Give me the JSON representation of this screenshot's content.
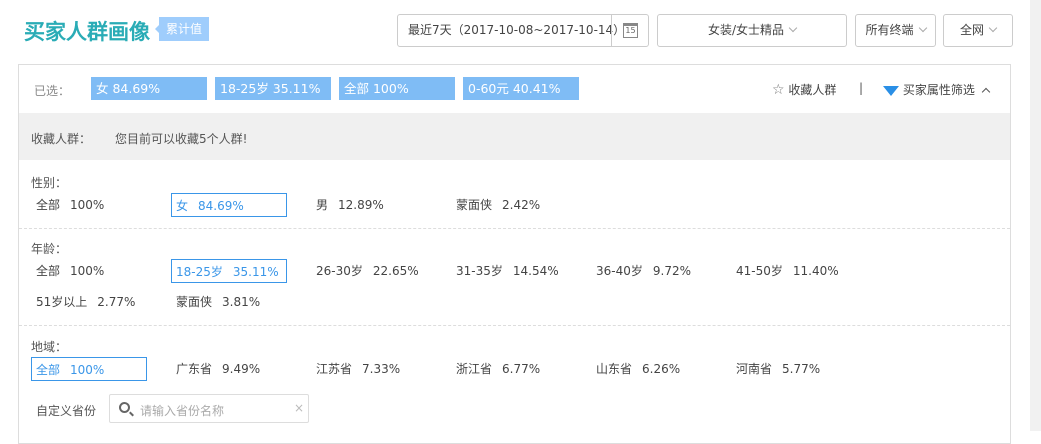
{
  "header": {
    "title": "买家人群画像",
    "tag": "累计值",
    "date_range": "最近7天（2017-10-08~2017-10-14）",
    "calendar_day": "15",
    "category": "女装/女士精品",
    "terminal": "所有终端",
    "channel": "全网"
  },
  "selected": {
    "label": "已选：",
    "chips": [
      "女 84.69%",
      "18-25岁 35.11%",
      "全部 100%",
      "0-60元 40.41%"
    ],
    "favorite_label": "收藏人群",
    "separator": "|",
    "filter_label": "买家属性筛选"
  },
  "favorites": {
    "label": "收藏人群：",
    "message": "您目前可以收藏5个人群!"
  },
  "gender": {
    "label": "性别：",
    "items": [
      {
        "name": "全部",
        "value": "100%"
      },
      {
        "name": "女",
        "value": "84.69%",
        "selected": true
      },
      {
        "name": "男",
        "value": "12.89%"
      },
      {
        "name": "蒙面侠",
        "value": "2.42%"
      }
    ]
  },
  "age": {
    "label": "年龄：",
    "items": [
      {
        "name": "全部",
        "value": "100%"
      },
      {
        "name": "18-25岁",
        "value": "35.11%",
        "selected": true
      },
      {
        "name": "26-30岁",
        "value": "22.65%"
      },
      {
        "name": "31-35岁",
        "value": "14.54%"
      },
      {
        "name": "36-40岁",
        "value": "9.72%"
      },
      {
        "name": "41-50岁",
        "value": "11.40%"
      },
      {
        "name": "51岁以上",
        "value": "2.77%"
      },
      {
        "name": "蒙面侠",
        "value": "3.81%"
      }
    ]
  },
  "region": {
    "label": "地域：",
    "items": [
      {
        "name": "全部",
        "value": "100%",
        "selected": true
      },
      {
        "name": "广东省",
        "value": "9.49%"
      },
      {
        "name": "江苏省",
        "value": "7.33%"
      },
      {
        "name": "浙江省",
        "value": "6.77%"
      },
      {
        "name": "山东省",
        "value": "6.26%"
      },
      {
        "name": "河南省",
        "value": "5.77%"
      }
    ],
    "custom_label": "自定义省份",
    "search_placeholder": "请输入省份名称",
    "clear": "×"
  },
  "colors": {
    "title": "#2aacb6",
    "chip": "#7fbcf5",
    "selected": "#3a96e8"
  }
}
